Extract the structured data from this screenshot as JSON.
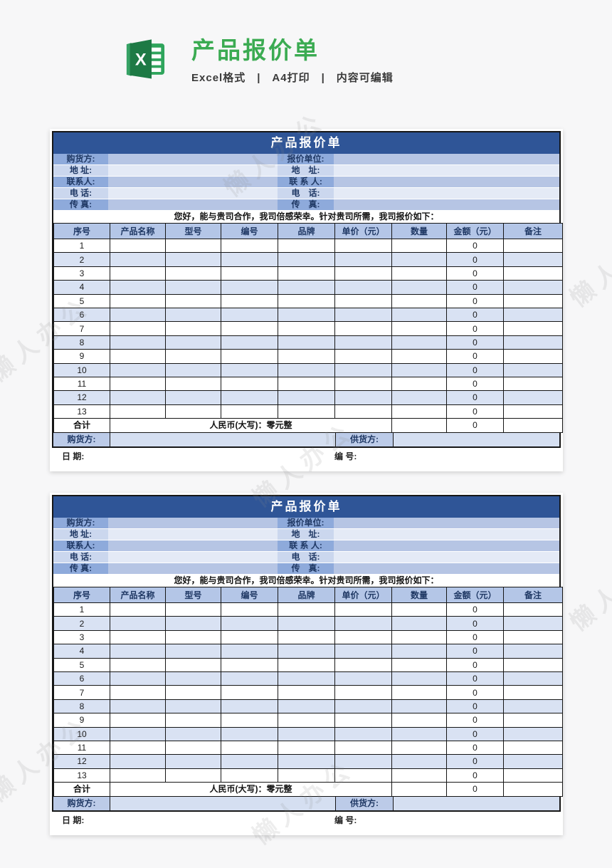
{
  "header": {
    "title": "产品报价单",
    "subtitle": "Excel格式　|　A4打印　|　内容可编辑",
    "logo_icon": "excel-icon",
    "title_color": "#3bab52"
  },
  "watermark_text": "懒人办公",
  "sheet": {
    "title": "产品报价单",
    "info_rows": [
      {
        "left_label": "购货方:",
        "left_value": "",
        "right_label": "报价单位:",
        "right_value": ""
      },
      {
        "left_label": "地 址:",
        "left_value": "",
        "right_label": "地　址:",
        "right_value": ""
      },
      {
        "left_label": "联系人:",
        "left_value": "",
        "right_label": "联 系 人:",
        "right_value": ""
      },
      {
        "left_label": "电 话:",
        "left_value": "",
        "right_label": "电　话:",
        "right_value": ""
      },
      {
        "left_label": "传 真:",
        "left_value": "",
        "right_label": "传　真:",
        "right_value": ""
      }
    ],
    "greeting": "您好，能与贵司合作，我司倍感荣幸。针对贵司所需，我司报价如下：",
    "columns": [
      "序号",
      "产品名称",
      "型号",
      "编号",
      "品牌",
      "单价（元）",
      "数量",
      "金额（元）",
      "备注"
    ],
    "items": [
      {
        "no": "1",
        "product": "",
        "model": "",
        "code": "",
        "brand": "",
        "unit_price": "",
        "qty": "",
        "amount": "0",
        "remark": ""
      },
      {
        "no": "2",
        "product": "",
        "model": "",
        "code": "",
        "brand": "",
        "unit_price": "",
        "qty": "",
        "amount": "0",
        "remark": ""
      },
      {
        "no": "3",
        "product": "",
        "model": "",
        "code": "",
        "brand": "",
        "unit_price": "",
        "qty": "",
        "amount": "0",
        "remark": ""
      },
      {
        "no": "4",
        "product": "",
        "model": "",
        "code": "",
        "brand": "",
        "unit_price": "",
        "qty": "",
        "amount": "0",
        "remark": ""
      },
      {
        "no": "5",
        "product": "",
        "model": "",
        "code": "",
        "brand": "",
        "unit_price": "",
        "qty": "",
        "amount": "0",
        "remark": ""
      },
      {
        "no": "6",
        "product": "",
        "model": "",
        "code": "",
        "brand": "",
        "unit_price": "",
        "qty": "",
        "amount": "0",
        "remark": ""
      },
      {
        "no": "7",
        "product": "",
        "model": "",
        "code": "",
        "brand": "",
        "unit_price": "",
        "qty": "",
        "amount": "0",
        "remark": ""
      },
      {
        "no": "8",
        "product": "",
        "model": "",
        "code": "",
        "brand": "",
        "unit_price": "",
        "qty": "",
        "amount": "0",
        "remark": ""
      },
      {
        "no": "9",
        "product": "",
        "model": "",
        "code": "",
        "brand": "",
        "unit_price": "",
        "qty": "",
        "amount": "0",
        "remark": ""
      },
      {
        "no": "10",
        "product": "",
        "model": "",
        "code": "",
        "brand": "",
        "unit_price": "",
        "qty": "",
        "amount": "0",
        "remark": ""
      },
      {
        "no": "11",
        "product": "",
        "model": "",
        "code": "",
        "brand": "",
        "unit_price": "",
        "qty": "",
        "amount": "0",
        "remark": ""
      },
      {
        "no": "12",
        "product": "",
        "model": "",
        "code": "",
        "brand": "",
        "unit_price": "",
        "qty": "",
        "amount": "0",
        "remark": ""
      },
      {
        "no": "13",
        "product": "",
        "model": "",
        "code": "",
        "brand": "",
        "unit_price": "",
        "qty": "",
        "amount": "0",
        "remark": ""
      }
    ],
    "total_row": {
      "label": "合计",
      "words": "人民币(大写)：零元整",
      "amount": "0"
    },
    "sign_row": {
      "buyer_label": "购货方:",
      "buyer_value": "",
      "supplier_label": "供货方:",
      "supplier_value": ""
    },
    "bottom_row": {
      "date_label": "日 期:",
      "number_label": "编 号:"
    }
  },
  "colors": {
    "band_blue": "#2F5597",
    "header_cell_blue": "#B4C6E7",
    "stripe_blue": "#D9E2F3",
    "label_blue": "#8EAADB",
    "text_navy": "#1F3864",
    "title_green": "#3bab52"
  }
}
